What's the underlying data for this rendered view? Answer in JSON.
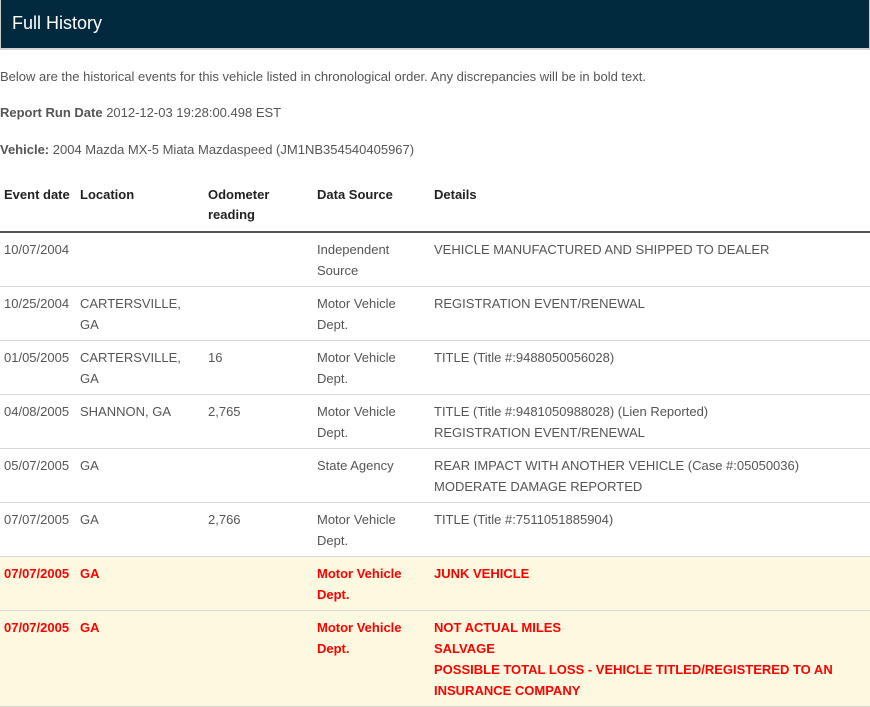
{
  "header": {
    "title": "Full History"
  },
  "intro": "Below are the historical events for this vehicle listed in chronological order. Any discrepancies will be in bold text.",
  "report": {
    "label": "Report Run Date",
    "value": "2012-12-03 19:28:00.498 EST"
  },
  "vehicle": {
    "label": "Vehicle:",
    "value": "2004 Mazda MX-5 Miata Mazdaspeed (JM1NB354540405967)"
  },
  "colors": {
    "header_bg": "#022a3e",
    "discrepancy_text": "#ff0000",
    "discrepancy_bg": "#fcf9e0"
  },
  "table": {
    "columns": [
      "Event date",
      "Location",
      "Odometer reading",
      "Data Source",
      "Details"
    ],
    "rows": [
      {
        "date": "10/07/2004",
        "location": "",
        "odometer": "",
        "source": "Independent Source",
        "details": [
          "VEHICLE MANUFACTURED AND SHIPPED TO DEALER"
        ],
        "discrepancy": false
      },
      {
        "date": "10/25/2004",
        "location": "CARTERSVILLE, GA",
        "odometer": "",
        "source": "Motor Vehicle Dept.",
        "details": [
          "REGISTRATION EVENT/RENEWAL"
        ],
        "discrepancy": false
      },
      {
        "date": "01/05/2005",
        "location": "CARTERSVILLE, GA",
        "odometer": "16",
        "source": "Motor Vehicle Dept.",
        "details": [
          "TITLE (Title #:9488050056028)"
        ],
        "discrepancy": false
      },
      {
        "date": "04/08/2005",
        "location": "SHANNON, GA",
        "odometer": "2,765",
        "source": "Motor Vehicle Dept.",
        "details": [
          "TITLE (Title #:9481050988028) (Lien Reported)",
          "REGISTRATION EVENT/RENEWAL"
        ],
        "discrepancy": false
      },
      {
        "date": "05/07/2005",
        "location": "GA",
        "odometer": "",
        "source": "State Agency",
        "details": [
          "REAR IMPACT WITH ANOTHER VEHICLE (Case #:05050036)",
          "MODERATE DAMAGE REPORTED"
        ],
        "discrepancy": false
      },
      {
        "date": "07/07/2005",
        "location": "GA",
        "odometer": "2,766",
        "source": "Motor Vehicle Dept.",
        "details": [
          "TITLE (Title #:7511051885904)"
        ],
        "discrepancy": false
      },
      {
        "date": "07/07/2005",
        "location": "GA",
        "odometer": "",
        "source": "Motor Vehicle Dept.",
        "details": [
          "JUNK VEHICLE"
        ],
        "discrepancy": true
      },
      {
        "date": "07/07/2005",
        "location": "GA",
        "odometer": "",
        "source": "Motor Vehicle Dept.",
        "details": [
          "NOT ACTUAL MILES",
          "SALVAGE",
          "POSSIBLE TOTAL LOSS - VEHICLE TITLED/REGISTERED TO AN INSURANCE COMPANY"
        ],
        "discrepancy": true
      }
    ]
  }
}
